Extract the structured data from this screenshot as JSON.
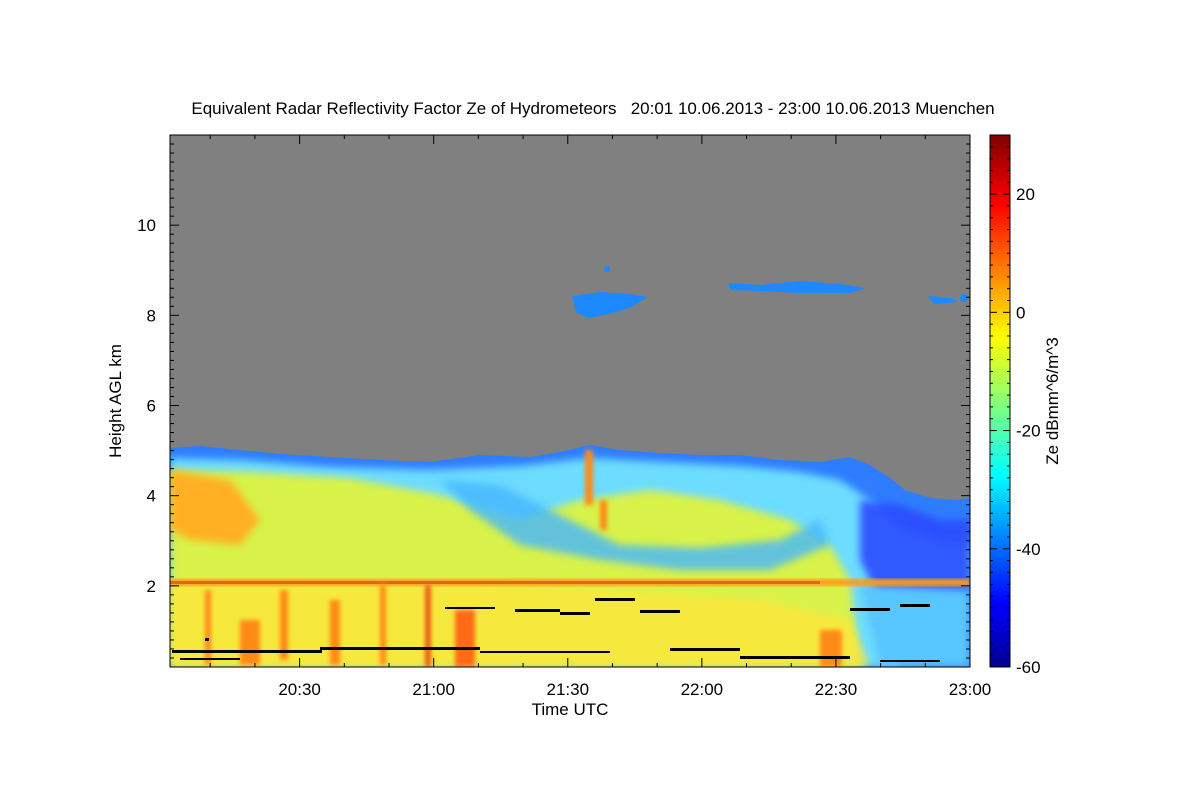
{
  "chart_data": {
    "type": "heatmap",
    "title": "Equivalent Radar Reflectivity Factor Ze of Hydrometeors   20:01 10.06.2013 - 23:00 10.06.2013 Muenchen",
    "xlabel": "Time UTC",
    "ylabel": "Height AGL km",
    "x_ticks": [
      "20:30",
      "21:00",
      "21:30",
      "22:00",
      "22:30",
      "23:00"
    ],
    "x_tick_minutes": [
      30,
      60,
      90,
      120,
      150,
      180
    ],
    "xlim_minutes": [
      1,
      180
    ],
    "ylim": [
      0.2,
      12
    ],
    "y_ticks": [
      2,
      4,
      6,
      8,
      10
    ],
    "colorbar": {
      "label": "Ze dBmm^6/m^3",
      "range": [
        -60,
        30
      ],
      "ticks": [
        20,
        0,
        -20,
        -40,
        -60
      ],
      "colormap": "jet"
    },
    "missing_color": "#808080",
    "grid": false
  }
}
